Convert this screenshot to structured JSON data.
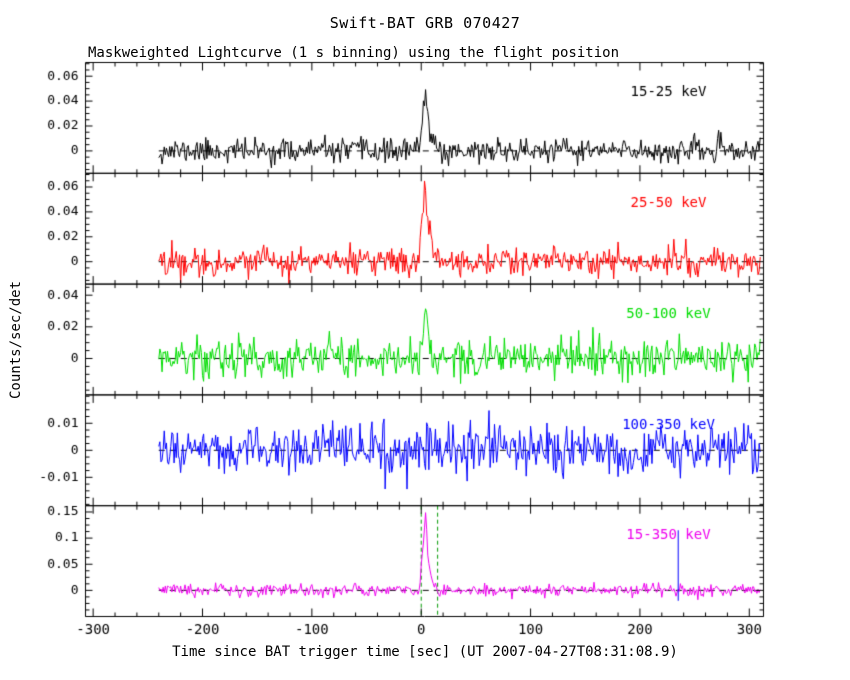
{
  "chart_data": {
    "type": "line",
    "title": "Swift-BAT GRB 070427",
    "subtitle": "Maskweighted Lightcurve (1 s binning) using the flight position",
    "xlabel": "Time since BAT trigger time [sec] (UT 2007-04-27T08:31:08.9)",
    "ylabel": "Counts/sec/det",
    "xlim": [
      -307,
      313
    ],
    "xticks": [
      -300,
      -200,
      -100,
      0,
      100,
      200,
      300
    ],
    "xtick_labels": [
      "-300",
      "-200",
      "-100",
      "0",
      "100",
      "200",
      "300"
    ],
    "x_minor_step": 20,
    "data_time_range": [
      -240,
      310
    ],
    "binning_sec": 1,
    "background": "#ffffff",
    "axis_color": "#000000",
    "zero_line": {
      "style": "dashed",
      "color": "#000000",
      "value": 0
    },
    "panels": [
      {
        "label": "15-25 keV",
        "color": "#000000",
        "ylim": [
          -0.018,
          0.071
        ],
        "ytick_values": [
          0,
          0.02,
          0.04,
          0.06
        ],
        "ytick_labels": [
          "0",
          "0.02",
          "0.04",
          "0.06"
        ],
        "y_minor_step": 0.005,
        "noise_sigma": 0.0048,
        "seed": 11,
        "burst": {
          "t_start": -2,
          "t_peak": 4,
          "peak": 0.056,
          "decay_tau": 3,
          "t_end": 25
        }
      },
      {
        "label": "25-50 keV",
        "color": "#ff0000",
        "ylim": [
          -0.018,
          0.071
        ],
        "ytick_values": [
          0,
          0.02,
          0.04,
          0.06
        ],
        "ytick_labels": [
          "0",
          "0.02",
          "0.04",
          "0.06"
        ],
        "y_minor_step": 0.005,
        "noise_sigma": 0.0055,
        "seed": 22,
        "burst": {
          "t_start": -2,
          "t_peak": 3,
          "peak": 0.062,
          "decay_tau": 4.5,
          "t_end": 30
        }
      },
      {
        "label": "50-100 keV",
        "color": "#00dd00",
        "ylim": [
          -0.023,
          0.047
        ],
        "ytick_values": [
          0,
          0.02,
          0.04
        ],
        "ytick_labels": [
          "0",
          "0.02",
          "0.04"
        ],
        "y_minor_step": 0.005,
        "noise_sigma": 0.0062,
        "seed": 33,
        "burst": {
          "t_start": -2,
          "t_peak": 4,
          "peak": 0.034,
          "decay_tau": 3,
          "t_end": 20
        }
      },
      {
        "label": "100-350 keV",
        "color": "#0000ff",
        "ylim": [
          -0.0205,
          0.0205
        ],
        "ytick_values": [
          -0.01,
          0,
          0.01
        ],
        "ytick_labels": [
          "-0.01",
          "0",
          "0.01"
        ],
        "y_minor_step": 0.0025,
        "noise_sigma": 0.0045,
        "seed": 44,
        "burst": null
      },
      {
        "label": "15-350 keV",
        "color": "#ee00ee",
        "ylim": [
          -0.05,
          0.162
        ],
        "ytick_values": [
          0,
          0.05,
          0.1,
          0.15
        ],
        "ytick_labels": [
          "0",
          "0.05",
          "0.1",
          "0.15"
        ],
        "y_minor_step": 0.0125,
        "noise_sigma": 0.006,
        "seed": 55,
        "burst": {
          "t_start": -2,
          "t_peak": 4,
          "peak": 0.15,
          "decay_tau": 3,
          "t_end": 25
        },
        "vlines": [
          {
            "t": 0,
            "color": "#009900",
            "dash": [
              4,
              3
            ]
          },
          {
            "t": 15,
            "color": "#009900",
            "dash": [
              4,
              3
            ]
          }
        ],
        "spike": {
          "t": 235,
          "y0": -0.02,
          "y1": 0.115,
          "color": "#0000ff"
        }
      }
    ]
  }
}
